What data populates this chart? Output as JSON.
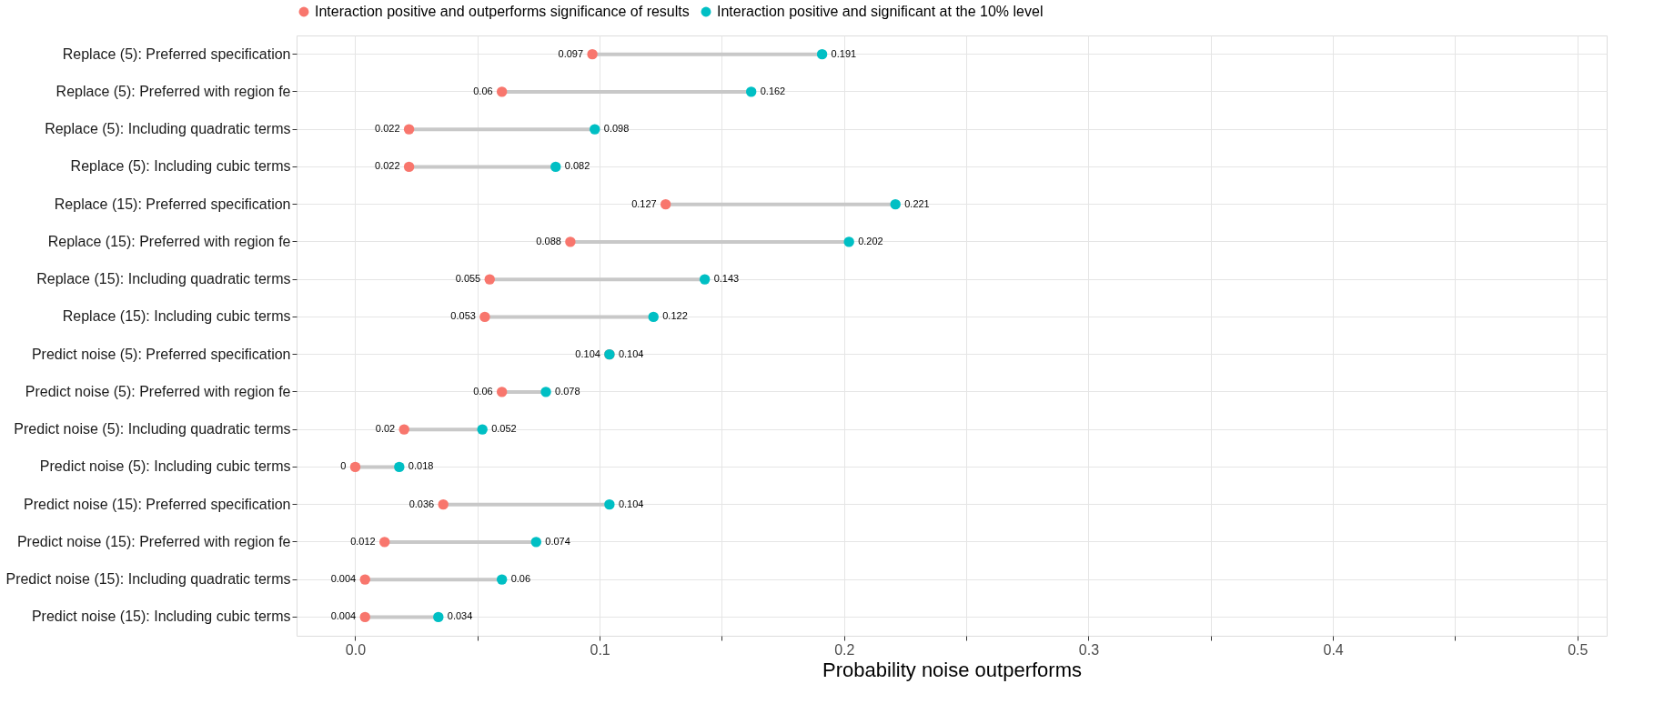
{
  "chart_data": {
    "type": "scatter",
    "orientation": "horizontal",
    "xlabel": "Probability noise outperforms",
    "categories": [
      "Replace (5): Preferred specification",
      "Replace (5): Preferred with region fe",
      "Replace (5): Including quadratic terms",
      "Replace (5): Including cubic terms",
      "Replace (15): Preferred specification",
      "Replace (15): Preferred with region fe",
      "Replace (15): Including quadratic terms",
      "Replace (15): Including cubic terms",
      "Predict noise (5): Preferred specification",
      "Predict noise (5): Preferred with region fe",
      "Predict noise (5): Including quadratic terms",
      "Predict noise (5): Including cubic terms",
      "Predict noise (15): Preferred specification",
      "Predict noise (15): Preferred with region fe",
      "Predict noise (15): Including quadratic terms",
      "Predict noise (15): Including cubic terms"
    ],
    "series": [
      {
        "type": "bar",
        "color": "#c8c8c8",
        "base": [
          0.097,
          0.06,
          0.022,
          0.022,
          0.127,
          0.088,
          0.055,
          0.053,
          null,
          0.06,
          0.02,
          0,
          0.036,
          0.012,
          0.004,
          0.004
        ],
        "values": [
          0.094,
          0.102,
          0.076,
          0.06,
          0.094,
          0.114,
          0.088,
          0.069,
          null,
          0.018,
          0.032,
          0.018,
          0.068,
          0.062,
          0.056,
          0.03
        ]
      },
      {
        "name": "Interaction positive and outperforms significance of results",
        "color": "#f8766d",
        "values": [
          0.097,
          0.06,
          0.022,
          0.022,
          0.127,
          0.088,
          0.055,
          0.053,
          0.104,
          0.06,
          0.02,
          0,
          0.036,
          0.012,
          0.004,
          0.004
        ],
        "value_labels": [
          "0.097",
          "0.06",
          "0.022",
          "0.022",
          "0.127",
          "0.088",
          "0.055",
          "0.053",
          "0.104",
          "0.06",
          "0.02",
          "0",
          "0.036",
          "0.012",
          "0.004",
          "0.004"
        ]
      },
      {
        "name": "Interaction positive and significant at the 10% level",
        "color": "#00bfc4",
        "values": [
          0.191,
          0.162,
          0.098,
          0.082,
          0.221,
          0.202,
          0.143,
          0.122,
          0.104,
          0.078,
          0.052,
          0.018,
          0.104,
          0.074,
          0.06,
          0.034
        ],
        "value_labels": [
          "0.191",
          "0.162",
          "0.098",
          "0.082",
          "0.221",
          "0.202",
          "0.143",
          "0.122",
          "0.104",
          "0.078",
          "0.052",
          "0.018",
          "0.104",
          "0.074",
          "0.06",
          "0.034"
        ]
      }
    ],
    "xlim": [
      -0.024,
      0.512
    ],
    "xticks": [
      {
        "value": 0.0,
        "label": "0.0"
      },
      {
        "value": 0.05,
        "label": null
      },
      {
        "value": 0.1,
        "label": "0.1"
      },
      {
        "value": 0.15,
        "label": null
      },
      {
        "value": 0.2,
        "label": "0.2"
      },
      {
        "value": 0.25,
        "label": null
      },
      {
        "value": 0.3,
        "label": "0.3"
      },
      {
        "value": 0.35,
        "label": null
      },
      {
        "value": 0.4,
        "label": "0.4"
      },
      {
        "value": 0.45,
        "label": null
      },
      {
        "value": 0.5,
        "label": "0.5"
      }
    ],
    "grid": true,
    "legend": "top",
    "marker": "circle"
  }
}
